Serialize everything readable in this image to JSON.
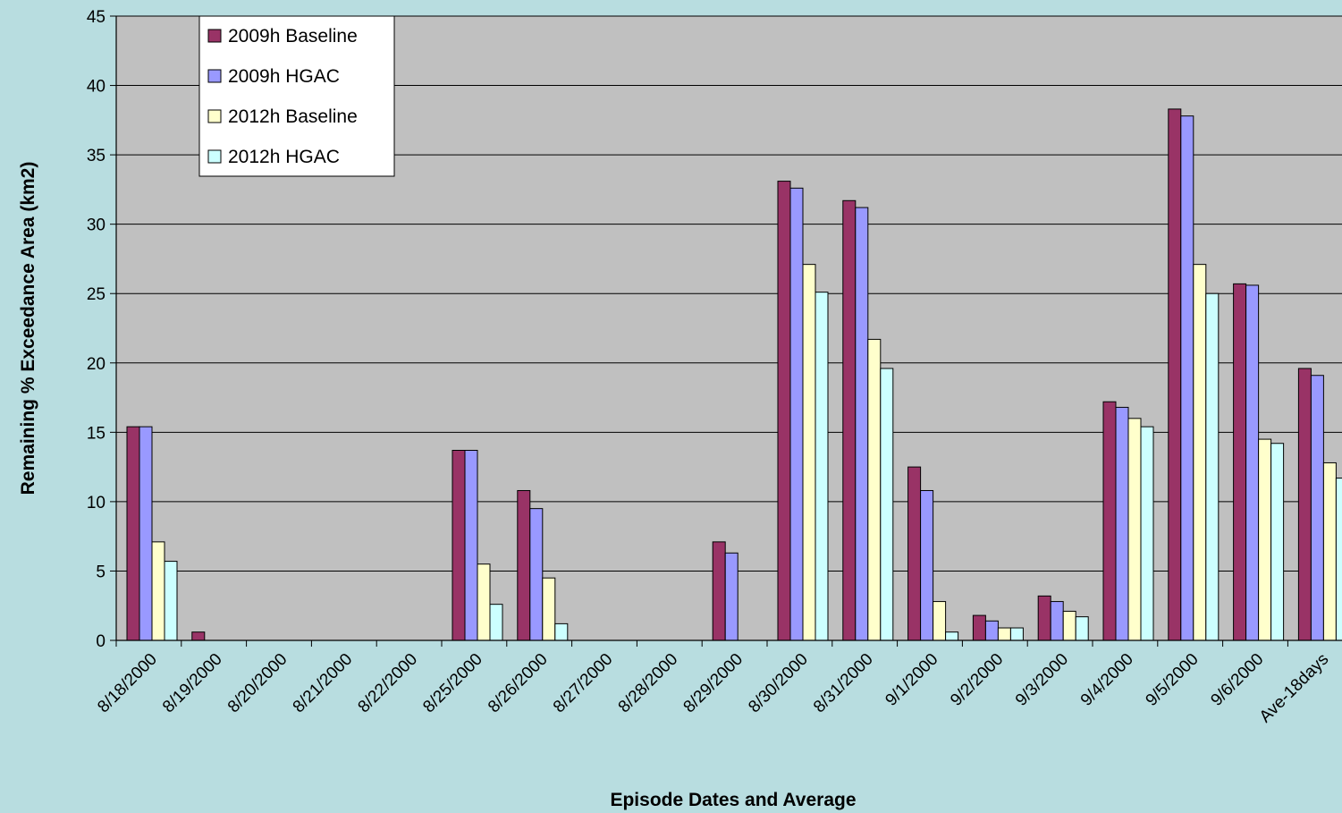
{
  "chart_data": {
    "type": "bar",
    "title": "",
    "xlabel": "Episode Dates and Average",
    "ylabel": "Remaining % Exceedance Area (km2)",
    "ylim": [
      0,
      45
    ],
    "yticks": [
      0,
      5,
      10,
      15,
      20,
      25,
      30,
      35,
      40,
      45
    ],
    "grid": true,
    "legend_position": "top-left",
    "categories": [
      "8/18/2000",
      "8/19/2000",
      "8/20/2000",
      "8/21/2000",
      "8/22/2000",
      "8/25/2000",
      "8/26/2000",
      "8/27/2000",
      "8/28/2000",
      "8/29/2000",
      "8/30/2000",
      "8/31/2000",
      "9/1/2000",
      "9/2/2000",
      "9/3/2000",
      "9/4/2000",
      "9/5/2000",
      "9/6/2000",
      "Ave-18days"
    ],
    "series": [
      {
        "name": "2009h Baseline",
        "color": "#993366",
        "values": [
          15.4,
          0.6,
          0,
          0,
          0,
          13.7,
          10.8,
          0,
          0,
          7.1,
          33.1,
          31.7,
          12.5,
          1.8,
          3.2,
          17.2,
          38.3,
          25.7,
          19.6
        ]
      },
      {
        "name": "2009h HGAC",
        "color": "#9999ff",
        "values": [
          15.4,
          0,
          0,
          0,
          0,
          13.7,
          9.5,
          0,
          0,
          6.3,
          32.6,
          31.2,
          10.8,
          1.4,
          2.8,
          16.8,
          37.8,
          25.6,
          19.1
        ]
      },
      {
        "name": "2012h Baseline",
        "color": "#ffffcc",
        "values": [
          7.1,
          0,
          0,
          0,
          0,
          5.5,
          4.5,
          0,
          0,
          0,
          27.1,
          21.7,
          2.8,
          0.9,
          2.1,
          16.0,
          27.1,
          14.5,
          12.8
        ]
      },
      {
        "name": "2012h HGAC",
        "color": "#ccffff",
        "values": [
          5.7,
          0,
          0,
          0,
          0,
          2.6,
          1.2,
          0,
          0,
          0,
          25.1,
          19.6,
          0.6,
          0.9,
          1.7,
          15.4,
          25.0,
          14.2,
          11.7
        ]
      }
    ]
  }
}
